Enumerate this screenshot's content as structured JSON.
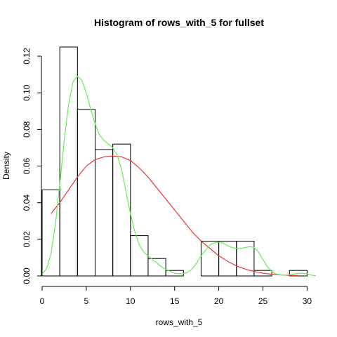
{
  "chart_data": {
    "type": "bar",
    "title": "Histogram of rows_with_5 for fullset",
    "xlabel": "rows_with_5",
    "ylabel": "Density",
    "xlim": [
      0,
      31
    ],
    "ylim": [
      0,
      0.125
    ],
    "x_ticks": [
      0,
      5,
      10,
      15,
      20,
      25,
      30
    ],
    "y_ticks": [
      0.0,
      0.02,
      0.04,
      0.06,
      0.08,
      0.1,
      0.12
    ],
    "y_tick_labels": [
      "0.00",
      "0.02",
      "0.04",
      "0.06",
      "0.08",
      "0.10",
      "0.12"
    ],
    "bins": [
      {
        "x0": 0,
        "x1": 2,
        "density": 0.047
      },
      {
        "x0": 2,
        "x1": 4,
        "density": 0.125
      },
      {
        "x0": 4,
        "x1": 6,
        "density": 0.091
      },
      {
        "x0": 6,
        "x1": 8,
        "density": 0.069
      },
      {
        "x0": 8,
        "x1": 10,
        "density": 0.072
      },
      {
        "x0": 10,
        "x1": 12,
        "density": 0.022
      },
      {
        "x0": 12,
        "x1": 14,
        "density": 0.0095
      },
      {
        "x0": 14,
        "x1": 16,
        "density": 0.003
      },
      {
        "x0": 16,
        "x1": 18,
        "density": 0.0
      },
      {
        "x0": 18,
        "x1": 20,
        "density": 0.019
      },
      {
        "x0": 20,
        "x1": 22,
        "density": 0.019
      },
      {
        "x0": 22,
        "x1": 24,
        "density": 0.019
      },
      {
        "x0": 24,
        "x1": 26,
        "density": 0.003
      },
      {
        "x0": 26,
        "x1": 28,
        "density": 0.0
      },
      {
        "x0": 28,
        "x1": 30,
        "density": 0.003
      }
    ],
    "series": [
      {
        "type": "line",
        "color": "#ee3333",
        "points": [
          [
            1,
            0.034
          ],
          [
            2,
            0.04
          ],
          [
            3,
            0.047
          ],
          [
            4,
            0.054
          ],
          [
            5,
            0.06
          ],
          [
            6,
            0.0635
          ],
          [
            7,
            0.065
          ],
          [
            8,
            0.0655
          ],
          [
            9,
            0.065
          ],
          [
            10,
            0.063
          ],
          [
            11,
            0.059
          ],
          [
            12,
            0.054
          ],
          [
            13,
            0.048
          ],
          [
            14,
            0.042
          ],
          [
            15,
            0.036
          ],
          [
            16,
            0.03
          ],
          [
            17,
            0.024
          ],
          [
            18,
            0.019
          ],
          [
            19,
            0.015
          ],
          [
            20,
            0.011
          ],
          [
            21,
            0.008
          ],
          [
            22,
            0.0055
          ],
          [
            23,
            0.0037
          ],
          [
            24,
            0.0024
          ],
          [
            25,
            0.0015
          ],
          [
            26,
            0.0009
          ],
          [
            27,
            0.0005
          ],
          [
            28,
            0.0003
          ],
          [
            29,
            0.0002
          ]
        ]
      },
      {
        "type": "line",
        "color": "#66ee55",
        "points": [
          [
            0,
            0.001
          ],
          [
            0.5,
            0.004
          ],
          [
            1,
            0.012
          ],
          [
            1.5,
            0.028
          ],
          [
            2,
            0.05
          ],
          [
            2.5,
            0.074
          ],
          [
            3,
            0.094
          ],
          [
            3.5,
            0.106
          ],
          [
            4,
            0.109
          ],
          [
            4.5,
            0.107
          ],
          [
            5,
            0.1
          ],
          [
            5.5,
            0.091
          ],
          [
            6,
            0.083
          ],
          [
            6.5,
            0.077
          ],
          [
            7,
            0.074
          ],
          [
            7.5,
            0.072
          ],
          [
            8,
            0.07
          ],
          [
            8.5,
            0.066
          ],
          [
            9,
            0.058
          ],
          [
            9.5,
            0.046
          ],
          [
            10,
            0.034
          ],
          [
            10.5,
            0.024
          ],
          [
            11,
            0.017
          ],
          [
            11.5,
            0.013
          ],
          [
            12,
            0.011
          ],
          [
            12.5,
            0.009
          ],
          [
            13,
            0.007
          ],
          [
            13.5,
            0.005
          ],
          [
            14,
            0.0035
          ],
          [
            14.5,
            0.0025
          ],
          [
            15,
            0.0015
          ],
          [
            15.5,
            0.0012
          ],
          [
            16,
            0.0013
          ],
          [
            16.5,
            0.002
          ],
          [
            17,
            0.004
          ],
          [
            17.5,
            0.007
          ],
          [
            18,
            0.011
          ],
          [
            18.5,
            0.014
          ],
          [
            19,
            0.017
          ],
          [
            19.5,
            0.018
          ],
          [
            20,
            0.0185
          ],
          [
            20.5,
            0.018
          ],
          [
            21,
            0.0165
          ],
          [
            21.5,
            0.0155
          ],
          [
            22,
            0.015
          ],
          [
            22.5,
            0.015
          ],
          [
            23,
            0.0155
          ],
          [
            23.5,
            0.016
          ],
          [
            24,
            0.0155
          ],
          [
            24.5,
            0.013
          ],
          [
            25,
            0.009
          ],
          [
            25.5,
            0.005
          ],
          [
            26,
            0.0025
          ],
          [
            26.5,
            0.001
          ],
          [
            27,
            0.0005
          ],
          [
            27.5,
            0.0004
          ],
          [
            28,
            0.0006
          ],
          [
            28.5,
            0.001
          ],
          [
            29,
            0.0015
          ],
          [
            29.5,
            0.0015
          ],
          [
            30,
            0.001
          ],
          [
            30.5,
            0.0004
          ],
          [
            31,
            0.0001
          ]
        ]
      }
    ]
  }
}
